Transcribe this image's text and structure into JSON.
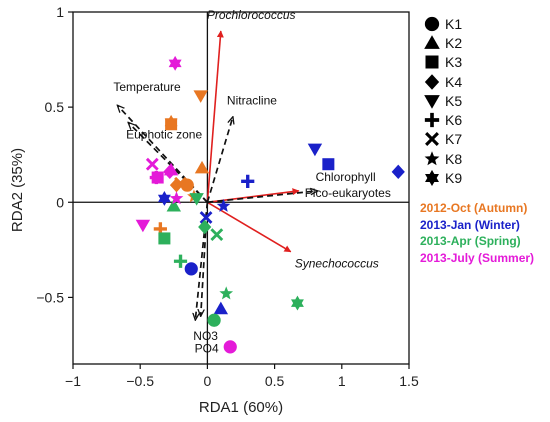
{
  "chart_data": {
    "type": "scatter",
    "xlabel": "RDA1 (60%)",
    "ylabel": "RDA2 (35%)",
    "xlim": [
      -1,
      1.5
    ],
    "ylim": [
      -0.85,
      1
    ],
    "x_ticks": [
      "−1",
      "−0.5",
      "0",
      "0.5",
      "1",
      "1.5"
    ],
    "y_ticks": [
      "1",
      "0.5",
      "0",
      "−0.5"
    ],
    "x_tick_values": [
      -1,
      -0.5,
      0,
      0.5,
      1,
      1.5
    ],
    "y_tick_values": [
      1,
      0.5,
      0,
      -0.5
    ],
    "reference_lines": [
      0
    ],
    "biplot_arrows": [
      {
        "label": "Prochlorococcus",
        "x": 0.1,
        "y": 0.9,
        "style": "red",
        "italic": true
      },
      {
        "label": "Synechococcus",
        "x": 0.62,
        "y": -0.26,
        "style": "red",
        "italic": true
      },
      {
        "label": "Pico-eukaryotes",
        "x": 0.68,
        "y": 0.06,
        "style": "red",
        "italic": false
      },
      {
        "label": "Chlorophyll",
        "x": 0.82,
        "y": 0.06,
        "style": "dashed",
        "italic": false
      },
      {
        "label": "Temperature",
        "x": -0.67,
        "y": 0.51,
        "style": "dashed",
        "italic": false
      },
      {
        "label": "Euphotic zone",
        "x": -0.59,
        "y": 0.42,
        "style": "dashed",
        "italic": false
      },
      {
        "label": "Nitracline",
        "x": 0.19,
        "y": 0.45,
        "style": "dashed",
        "italic": false
      },
      {
        "label": "NO3",
        "x": -0.09,
        "y": -0.62,
        "style": "dashed",
        "italic": false
      },
      {
        "label": "PO4",
        "x": -0.05,
        "y": -0.6,
        "style": "dashed",
        "italic": false
      }
    ],
    "series": [
      {
        "name": "2012-Oct (Autumn)",
        "color": "#e87722",
        "points": [
          {
            "station": "K1",
            "x": -0.15,
            "y": 0.09
          },
          {
            "station": "K2",
            "x": -0.04,
            "y": 0.18
          },
          {
            "station": "K3",
            "x": -0.27,
            "y": 0.41
          },
          {
            "station": "K4",
            "x": -0.23,
            "y": 0.09
          },
          {
            "station": "K5",
            "x": -0.05,
            "y": 0.56
          },
          {
            "station": "K6",
            "x": -0.35,
            "y": -0.14
          },
          {
            "station": "K7",
            "x": -0.2,
            "y": 0.1
          },
          {
            "station": "K8",
            "x": -0.1,
            "y": 0.03
          },
          {
            "station": "K9",
            "x": -0.27,
            "y": 0.42
          }
        ]
      },
      {
        "name": "2013-Jan (Winter)",
        "color": "#1a21c9",
        "points": [
          {
            "station": "K1",
            "x": -0.12,
            "y": -0.35
          },
          {
            "station": "K2",
            "x": 0.1,
            "y": -0.56
          },
          {
            "station": "K3",
            "x": 0.9,
            "y": 0.2
          },
          {
            "station": "K4",
            "x": 1.42,
            "y": 0.16
          },
          {
            "station": "K5",
            "x": 0.8,
            "y": 0.28
          },
          {
            "station": "K6",
            "x": 0.3,
            "y": 0.11
          },
          {
            "station": "K7",
            "x": -0.01,
            "y": -0.08
          },
          {
            "station": "K8",
            "x": 0.12,
            "y": -0.02
          },
          {
            "station": "K9",
            "x": -0.32,
            "y": 0.02
          }
        ]
      },
      {
        "name": "2013-Apr (Spring)",
        "color": "#2db05c",
        "points": [
          {
            "station": "K1",
            "x": 0.05,
            "y": -0.62
          },
          {
            "station": "K2",
            "x": -0.25,
            "y": -0.02
          },
          {
            "station": "K3",
            "x": -0.32,
            "y": -0.19
          },
          {
            "station": "K4",
            "x": -0.02,
            "y": -0.13
          },
          {
            "station": "K5",
            "x": -0.08,
            "y": 0.02
          },
          {
            "station": "K6",
            "x": -0.2,
            "y": -0.31
          },
          {
            "station": "K7",
            "x": 0.07,
            "y": -0.17
          },
          {
            "station": "K8",
            "x": 0.14,
            "y": -0.48
          },
          {
            "station": "K9",
            "x": 0.67,
            "y": -0.53
          }
        ]
      },
      {
        "name": "2013-July (Summer)",
        "color": "#e41ad8",
        "points": [
          {
            "station": "K1",
            "x": 0.17,
            "y": -0.76
          },
          {
            "station": "K2",
            "x": -0.27,
            "y": 0.17
          },
          {
            "station": "K3",
            "x": -0.37,
            "y": 0.13
          },
          {
            "station": "K4",
            "x": -0.28,
            "y": 0.16
          },
          {
            "station": "K5",
            "x": -0.48,
            "y": -0.12
          },
          {
            "station": "K6",
            "x": -0.38,
            "y": 0.13
          },
          {
            "station": "K7",
            "x": -0.41,
            "y": 0.2
          },
          {
            "station": "K8",
            "x": -0.23,
            "y": 0.02
          },
          {
            "station": "K9",
            "x": -0.24,
            "y": 0.73
          }
        ]
      }
    ]
  },
  "legend": {
    "stations": [
      {
        "label": "K1",
        "marker": "circle"
      },
      {
        "label": "K2",
        "marker": "triangle-up"
      },
      {
        "label": "K3",
        "marker": "square"
      },
      {
        "label": "K4",
        "marker": "diamond"
      },
      {
        "label": "K5",
        "marker": "triangle-down"
      },
      {
        "label": "K6",
        "marker": "plus"
      },
      {
        "label": "K7",
        "marker": "cross"
      },
      {
        "label": "K8",
        "marker": "star5"
      },
      {
        "label": "K9",
        "marker": "star6"
      }
    ],
    "seasons": [
      {
        "label": "2012-Oct (Autumn)",
        "color": "#e87722"
      },
      {
        "label": "2013-Jan (Winter)",
        "color": "#1a21c9"
      },
      {
        "label": "2013-Apr (Spring)",
        "color": "#2db05c"
      },
      {
        "label": "2013-July (Summer)",
        "color": "#e41ad8"
      }
    ]
  }
}
